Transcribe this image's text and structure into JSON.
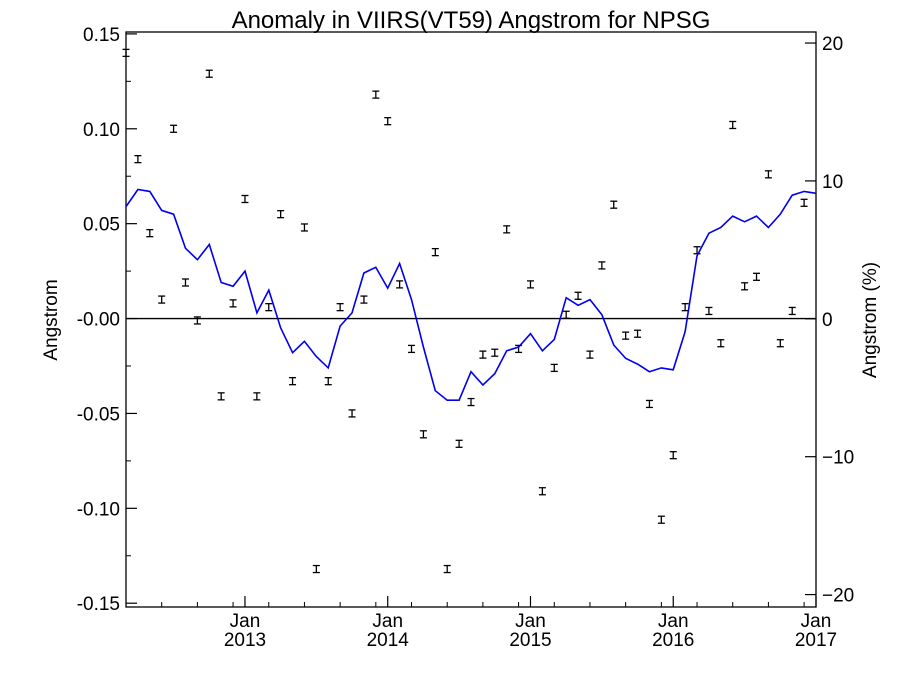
{
  "chart_data": {
    "type": "line",
    "title": "Anomaly in VIIRS(VT59) Angstrom for NPSG",
    "ylabel": "Angstrom",
    "y2label": "Angstrom (%)",
    "xlabel": "",
    "ylim": [
      -0.152,
      0.151
    ],
    "y2lim": [
      -20.9,
      20.8
    ],
    "xlim": [
      "2012-03-01",
      "2017-01-01"
    ],
    "yticks": [
      "0.15",
      "0.10",
      "0.05",
      "-0.00",
      "-0.05",
      "-0.10",
      "-0.15"
    ],
    "y2ticks": [
      "20",
      "10",
      "0",
      "−10",
      "−20"
    ],
    "xticks": [
      {
        "month": "Jan",
        "year": "2013",
        "date": "2013-01-01"
      },
      {
        "month": "Jan",
        "year": "2014",
        "date": "2014-01-01"
      },
      {
        "month": "Jan",
        "year": "2015",
        "date": "2015-01-01"
      },
      {
        "month": "Jan",
        "year": "2016",
        "date": "2016-01-01"
      },
      {
        "month": "Jan",
        "year": "2017",
        "date": "2017-01-01"
      }
    ],
    "grid": false,
    "reference_line": 0,
    "line_color": "#0000ee",
    "series": [
      {
        "kind": "line",
        "values": [
          {
            "x": "2012-03",
            "y": 0.059
          },
          {
            "x": "2012-04",
            "y": 0.068
          },
          {
            "x": "2012-05",
            "y": 0.067
          },
          {
            "x": "2012-06",
            "y": 0.057
          },
          {
            "x": "2012-07",
            "y": 0.055
          },
          {
            "x": "2012-08",
            "y": 0.037
          },
          {
            "x": "2012-09",
            "y": 0.031
          },
          {
            "x": "2012-10",
            "y": 0.039
          },
          {
            "x": "2012-11",
            "y": 0.019
          },
          {
            "x": "2012-12",
            "y": 0.017
          },
          {
            "x": "2013-01",
            "y": 0.025
          },
          {
            "x": "2013-02",
            "y": 0.003
          },
          {
            "x": "2013-03",
            "y": 0.015
          },
          {
            "x": "2013-04",
            "y": -0.005
          },
          {
            "x": "2013-05",
            "y": -0.018
          },
          {
            "x": "2013-06",
            "y": -0.012
          },
          {
            "x": "2013-07",
            "y": -0.02
          },
          {
            "x": "2013-08",
            "y": -0.026
          },
          {
            "x": "2013-09",
            "y": -0.004
          },
          {
            "x": "2013-10",
            "y": 0.003
          },
          {
            "x": "2013-11",
            "y": 0.024
          },
          {
            "x": "2013-12",
            "y": 0.027
          },
          {
            "x": "2014-01",
            "y": 0.016
          },
          {
            "x": "2014-02",
            "y": 0.029
          },
          {
            "x": "2014-03",
            "y": 0.01
          },
          {
            "x": "2014-04",
            "y": -0.015
          },
          {
            "x": "2014-05",
            "y": -0.038
          },
          {
            "x": "2014-06",
            "y": -0.043
          },
          {
            "x": "2014-07",
            "y": -0.043
          },
          {
            "x": "2014-08",
            "y": -0.028
          },
          {
            "x": "2014-09",
            "y": -0.035
          },
          {
            "x": "2014-10",
            "y": -0.029
          },
          {
            "x": "2014-11",
            "y": -0.017
          },
          {
            "x": "2014-12",
            "y": -0.015
          },
          {
            "x": "2015-01",
            "y": -0.008
          },
          {
            "x": "2015-02",
            "y": -0.017
          },
          {
            "x": "2015-03",
            "y": -0.011
          },
          {
            "x": "2015-04",
            "y": 0.011
          },
          {
            "x": "2015-05",
            "y": 0.007
          },
          {
            "x": "2015-06",
            "y": 0.01
          },
          {
            "x": "2015-07",
            "y": 0.002
          },
          {
            "x": "2015-08",
            "y": -0.014
          },
          {
            "x": "2015-09",
            "y": -0.021
          },
          {
            "x": "2015-10",
            "y": -0.024
          },
          {
            "x": "2015-11",
            "y": -0.028
          },
          {
            "x": "2015-12",
            "y": -0.026
          },
          {
            "x": "2016-01",
            "y": -0.027
          },
          {
            "x": "2016-02",
            "y": -0.007
          },
          {
            "x": "2016-03",
            "y": 0.033
          },
          {
            "x": "2016-04",
            "y": 0.045
          },
          {
            "x": "2016-05",
            "y": 0.048
          },
          {
            "x": "2016-06",
            "y": 0.054
          },
          {
            "x": "2016-07",
            "y": 0.051
          },
          {
            "x": "2016-08",
            "y": 0.054
          },
          {
            "x": "2016-09",
            "y": 0.048
          },
          {
            "x": "2016-10",
            "y": 0.055
          },
          {
            "x": "2016-11",
            "y": 0.065
          },
          {
            "x": "2016-12",
            "y": 0.067
          },
          {
            "x": "2017-01",
            "y": 0.066
          }
        ]
      },
      {
        "kind": "errorbar",
        "values": [
          {
            "x": "2012-03",
            "y": 0.14
          },
          {
            "x": "2012-04",
            "y": 0.084
          },
          {
            "x": "2012-05",
            "y": 0.045
          },
          {
            "x": "2012-06",
            "y": 0.01
          },
          {
            "x": "2012-07",
            "y": 0.1
          },
          {
            "x": "2012-08",
            "y": 0.019
          },
          {
            "x": "2012-09",
            "y": -0.001
          },
          {
            "x": "2012-10",
            "y": 0.129
          },
          {
            "x": "2012-11",
            "y": -0.041
          },
          {
            "x": "2012-12",
            "y": 0.008
          },
          {
            "x": "2013-01",
            "y": 0.063
          },
          {
            "x": "2013-02",
            "y": -0.041
          },
          {
            "x": "2013-03",
            "y": 0.006
          },
          {
            "x": "2013-04",
            "y": 0.055
          },
          {
            "x": "2013-05",
            "y": -0.033
          },
          {
            "x": "2013-06",
            "y": 0.048
          },
          {
            "x": "2013-07",
            "y": -0.132
          },
          {
            "x": "2013-08",
            "y": -0.033
          },
          {
            "x": "2013-09",
            "y": 0.006
          },
          {
            "x": "2013-10",
            "y": -0.05
          },
          {
            "x": "2013-11",
            "y": 0.01
          },
          {
            "x": "2013-12",
            "y": 0.118
          },
          {
            "x": "2014-01",
            "y": 0.104
          },
          {
            "x": "2014-02",
            "y": 0.018
          },
          {
            "x": "2014-03",
            "y": -0.016
          },
          {
            "x": "2014-04",
            "y": -0.061
          },
          {
            "x": "2014-05",
            "y": 0.035
          },
          {
            "x": "2014-06",
            "y": -0.132
          },
          {
            "x": "2014-07",
            "y": -0.066
          },
          {
            "x": "2014-08",
            "y": -0.044
          },
          {
            "x": "2014-09",
            "y": -0.019
          },
          {
            "x": "2014-10",
            "y": -0.018
          },
          {
            "x": "2014-11",
            "y": 0.047
          },
          {
            "x": "2014-12",
            "y": -0.016
          },
          {
            "x": "2015-01",
            "y": 0.018
          },
          {
            "x": "2015-02",
            "y": -0.091
          },
          {
            "x": "2015-03",
            "y": -0.026
          },
          {
            "x": "2015-04",
            "y": 0.002
          },
          {
            "x": "2015-05",
            "y": 0.012
          },
          {
            "x": "2015-06",
            "y": -0.019
          },
          {
            "x": "2015-07",
            "y": 0.028
          },
          {
            "x": "2015-08",
            "y": 0.06
          },
          {
            "x": "2015-09",
            "y": -0.009
          },
          {
            "x": "2015-10",
            "y": -0.008
          },
          {
            "x": "2015-11",
            "y": -0.045
          },
          {
            "x": "2015-12",
            "y": -0.106
          },
          {
            "x": "2016-01",
            "y": -0.072
          },
          {
            "x": "2016-02",
            "y": 0.006
          },
          {
            "x": "2016-03",
            "y": 0.036
          },
          {
            "x": "2016-04",
            "y": 0.004
          },
          {
            "x": "2016-05",
            "y": -0.013
          },
          {
            "x": "2016-06",
            "y": 0.102
          },
          {
            "x": "2016-07",
            "y": 0.017
          },
          {
            "x": "2016-08",
            "y": 0.022
          },
          {
            "x": "2016-09",
            "y": 0.076
          },
          {
            "x": "2016-10",
            "y": -0.013
          },
          {
            "x": "2016-11",
            "y": 0.004
          },
          {
            "x": "2016-12",
            "y": 0.061
          }
        ]
      }
    ]
  }
}
